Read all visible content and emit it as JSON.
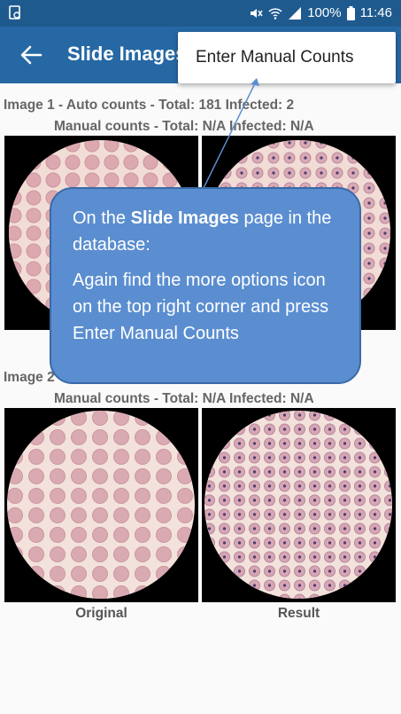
{
  "status_bar": {
    "battery": "100%",
    "time": "11:46"
  },
  "app_bar": {
    "title": "Slide Images"
  },
  "menu": {
    "items": [
      {
        "label": "Enter Manual Counts"
      }
    ]
  },
  "images": [
    {
      "auto_counts": "Image 1 - Auto counts - Total: 181  Infected: 2",
      "manual_counts": "Manual counts - Total: N/A  Infected: N/A"
    },
    {
      "auto_counts_visible_prefix": "Image 2",
      "manual_counts": "Manual counts - Total: N/A  Infected: N/A",
      "labels": {
        "original": "Original",
        "result": "Result"
      }
    }
  ],
  "callout": {
    "line1_prefix": "On the ",
    "line1_bold": "Slide Images",
    "line1_suffix": " page in the database:",
    "line2": "Again find the more options icon on the top right corner and press Enter Manual Counts"
  },
  "colors": {
    "status_bar": "#1f5a8f",
    "app_bar": "#2668a4",
    "callout_fill": "#5b8ed0",
    "callout_border": "#3a6aa6"
  }
}
